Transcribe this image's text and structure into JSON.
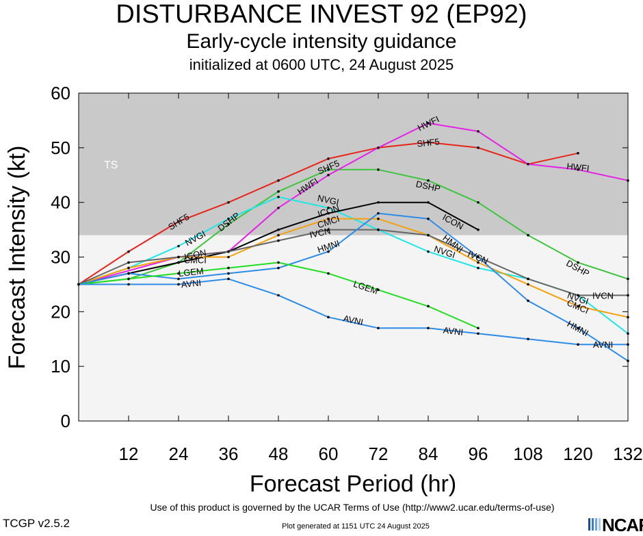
{
  "header": {
    "title": "DISTURBANCE INVEST 92 (EP92)",
    "subtitle": "Early-cycle intensity guidance",
    "init": "initialized at 0600 UTC, 24 August 2025"
  },
  "footer": {
    "terms": "Use of this product is governed by the UCAR Terms of Use (http://www2.ucar.edu/terms-of-use)",
    "generated": "Plot generated at 1151 UTC   24 August 2025",
    "version": "TCGP v2.5.2",
    "logo": "NCAR"
  },
  "colors": {
    "ts_band": "#c9c9c9",
    "below_ts": "#f4f4f4"
  },
  "chart_data": {
    "type": "line",
    "title": "DISTURBANCE INVEST 92 (EP92)",
    "xlabel": "Forecast Period (hr)",
    "ylabel": "Forecast Intensity (kt)",
    "xlim": [
      0,
      132
    ],
    "ylim": [
      0,
      60
    ],
    "xticks": [
      "12",
      "24",
      "36",
      "48",
      "60",
      "72",
      "84",
      "96",
      "108",
      "120",
      "132"
    ],
    "yticks": [
      "0",
      "10",
      "20",
      "30",
      "40",
      "50",
      "60"
    ],
    "band": {
      "label": "TS",
      "from": 34,
      "to": 60
    },
    "series": [
      {
        "name": "SHF5",
        "color": "#e8231a",
        "label_at": [
          [
            24,
            36.5
          ],
          [
            60,
            46.5
          ],
          [
            84,
            51
          ]
        ],
        "points": [
          [
            0,
            25
          ],
          [
            12,
            31
          ],
          [
            24,
            36.5
          ],
          [
            36,
            40
          ],
          [
            48,
            44
          ],
          [
            60,
            48
          ],
          [
            72,
            50
          ],
          [
            84,
            51
          ],
          [
            96,
            50
          ],
          [
            108,
            47
          ],
          [
            120,
            49
          ]
        ]
      },
      {
        "name": "DSHP",
        "color": "#3dc53d",
        "label_at": [
          [
            36,
            36.5
          ],
          [
            84,
            43
          ],
          [
            120,
            28
          ]
        ],
        "points": [
          [
            0,
            25
          ],
          [
            12,
            26
          ],
          [
            24,
            29
          ],
          [
            36,
            36
          ],
          [
            48,
            42
          ],
          [
            60,
            46
          ],
          [
            72,
            46
          ],
          [
            84,
            44
          ],
          [
            96,
            40
          ],
          [
            108,
            34
          ],
          [
            120,
            29
          ],
          [
            132,
            26
          ]
        ]
      },
      {
        "name": "HWFI",
        "color": "#e620e6",
        "label_at": [
          [
            55,
            43
          ],
          [
            84,
            54.5
          ],
          [
            120,
            46.5
          ]
        ],
        "points": [
          [
            0,
            25
          ],
          [
            24,
            30
          ],
          [
            36,
            31
          ],
          [
            48,
            39
          ],
          [
            60,
            45
          ],
          [
            72,
            50
          ],
          [
            84,
            54.5
          ],
          [
            96,
            53
          ],
          [
            108,
            47
          ],
          [
            120,
            46
          ],
          [
            132,
            44
          ]
        ]
      },
      {
        "name": "NVGI",
        "color": "#1ee6e6",
        "label_at": [
          [
            28,
            33.5
          ],
          [
            60,
            40.5
          ],
          [
            88,
            31
          ],
          [
            120,
            22.5
          ]
        ],
        "points": [
          [
            0,
            25
          ],
          [
            12,
            28
          ],
          [
            24,
            32
          ],
          [
            36,
            37
          ],
          [
            48,
            41
          ],
          [
            60,
            39
          ],
          [
            72,
            35
          ],
          [
            84,
            31
          ],
          [
            96,
            28
          ],
          [
            108,
            26
          ],
          [
            120,
            23
          ],
          [
            132,
            16
          ]
        ]
      },
      {
        "name": "ICON",
        "color": "#000000",
        "label_at": [
          [
            28,
            30.5
          ],
          [
            60,
            38.5
          ],
          [
            90,
            36.5
          ]
        ],
        "points": [
          [
            0,
            25
          ],
          [
            12,
            27
          ],
          [
            24,
            29
          ],
          [
            36,
            31
          ],
          [
            48,
            35
          ],
          [
            60,
            38
          ],
          [
            72,
            40
          ],
          [
            84,
            40
          ],
          [
            96,
            35
          ]
        ]
      },
      {
        "name": "CMCI",
        "color": "#f5a00a",
        "label_at": [
          [
            28,
            29.5
          ],
          [
            60,
            36.5
          ],
          [
            120,
            21
          ]
        ],
        "points": [
          [
            0,
            25
          ],
          [
            12,
            28
          ],
          [
            24,
            30
          ],
          [
            36,
            30
          ],
          [
            48,
            34
          ],
          [
            60,
            37
          ],
          [
            72,
            37
          ],
          [
            84,
            34
          ],
          [
            96,
            29
          ],
          [
            108,
            25
          ],
          [
            120,
            21
          ],
          [
            132,
            19
          ]
        ]
      },
      {
        "name": "IVCN",
        "color": "#666666",
        "label_at": [
          [
            58,
            34.5
          ],
          [
            96,
            30
          ],
          [
            126,
            23
          ]
        ],
        "points": [
          [
            0,
            25
          ],
          [
            12,
            29
          ],
          [
            24,
            30
          ],
          [
            36,
            31
          ],
          [
            48,
            33
          ],
          [
            60,
            35
          ],
          [
            72,
            35
          ],
          [
            84,
            34
          ],
          [
            96,
            30
          ],
          [
            108,
            26
          ],
          [
            120,
            23
          ],
          [
            132,
            23
          ]
        ]
      },
      {
        "name": "HMNI",
        "color": "#2c8ce8",
        "label_at": [
          [
            60,
            32
          ],
          [
            90,
            32.5
          ],
          [
            120,
            17
          ]
        ],
        "points": [
          [
            0,
            25
          ],
          [
            12,
            27
          ],
          [
            24,
            26
          ],
          [
            36,
            27
          ],
          [
            48,
            28
          ],
          [
            60,
            31
          ],
          [
            72,
            38
          ],
          [
            84,
            37
          ],
          [
            96,
            30
          ],
          [
            108,
            22
          ],
          [
            120,
            17
          ],
          [
            132,
            11
          ]
        ]
      },
      {
        "name": "LGEM",
        "color": "#22dd22",
        "label_at": [
          [
            27,
            27.3
          ],
          [
            69,
            24.5
          ]
        ],
        "points": [
          [
            0,
            25
          ],
          [
            12,
            26
          ],
          [
            24,
            27
          ],
          [
            36,
            28
          ],
          [
            48,
            29
          ],
          [
            60,
            27
          ],
          [
            72,
            24
          ],
          [
            84,
            21
          ],
          [
            96,
            17
          ]
        ]
      },
      {
        "name": "AVNI",
        "color": "#2c8ce8",
        "label_at": [
          [
            27,
            25.2
          ],
          [
            66,
            18.5
          ],
          [
            90,
            16.5
          ],
          [
            126,
            14
          ]
        ],
        "points": [
          [
            0,
            25
          ],
          [
            12,
            25
          ],
          [
            24,
            25
          ],
          [
            36,
            26
          ],
          [
            48,
            23
          ],
          [
            60,
            19
          ],
          [
            72,
            17
          ],
          [
            84,
            17
          ],
          [
            96,
            16
          ],
          [
            108,
            15
          ],
          [
            120,
            14
          ],
          [
            132,
            14
          ]
        ]
      }
    ]
  }
}
